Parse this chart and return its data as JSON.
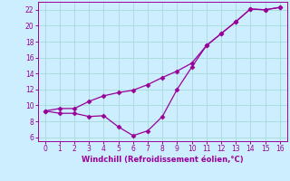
{
  "line1_x": [
    0,
    1,
    2,
    3,
    4,
    5,
    6,
    7,
    8,
    9,
    10,
    11,
    12,
    13,
    14,
    15,
    16
  ],
  "line1_y": [
    9.3,
    9.0,
    9.0,
    8.6,
    8.7,
    7.3,
    6.2,
    6.8,
    8.6,
    12.0,
    14.8,
    17.5,
    19.0,
    20.5,
    22.1,
    22.0,
    22.3
  ],
  "line2_x": [
    0,
    1,
    2,
    3,
    4,
    5,
    6,
    7,
    8,
    9,
    10,
    11,
    12,
    13,
    14,
    15,
    16
  ],
  "line2_y": [
    9.3,
    9.6,
    9.6,
    10.5,
    11.2,
    11.6,
    11.9,
    12.6,
    13.5,
    14.3,
    15.3,
    17.5,
    19.0,
    20.5,
    22.1,
    22.0,
    22.3
  ],
  "line_color": "#990099",
  "marker": "D",
  "markersize": 2.5,
  "xlabel": "Windchill (Refroidissement éolien,°C)",
  "xlabel_color": "#990099",
  "background_color": "#cceeff",
  "grid_color": "#aadddd",
  "tick_color": "#990099",
  "spine_color": "#990099",
  "xlim": [
    -0.5,
    16.5
  ],
  "ylim": [
    5.5,
    23.0
  ],
  "yticks": [
    6,
    8,
    10,
    12,
    14,
    16,
    18,
    20,
    22
  ],
  "xticks": [
    0,
    1,
    2,
    3,
    4,
    5,
    6,
    7,
    8,
    9,
    10,
    11,
    12,
    13,
    14,
    15,
    16
  ],
  "tick_fontsize": 5.5,
  "xlabel_fontsize": 6.0
}
